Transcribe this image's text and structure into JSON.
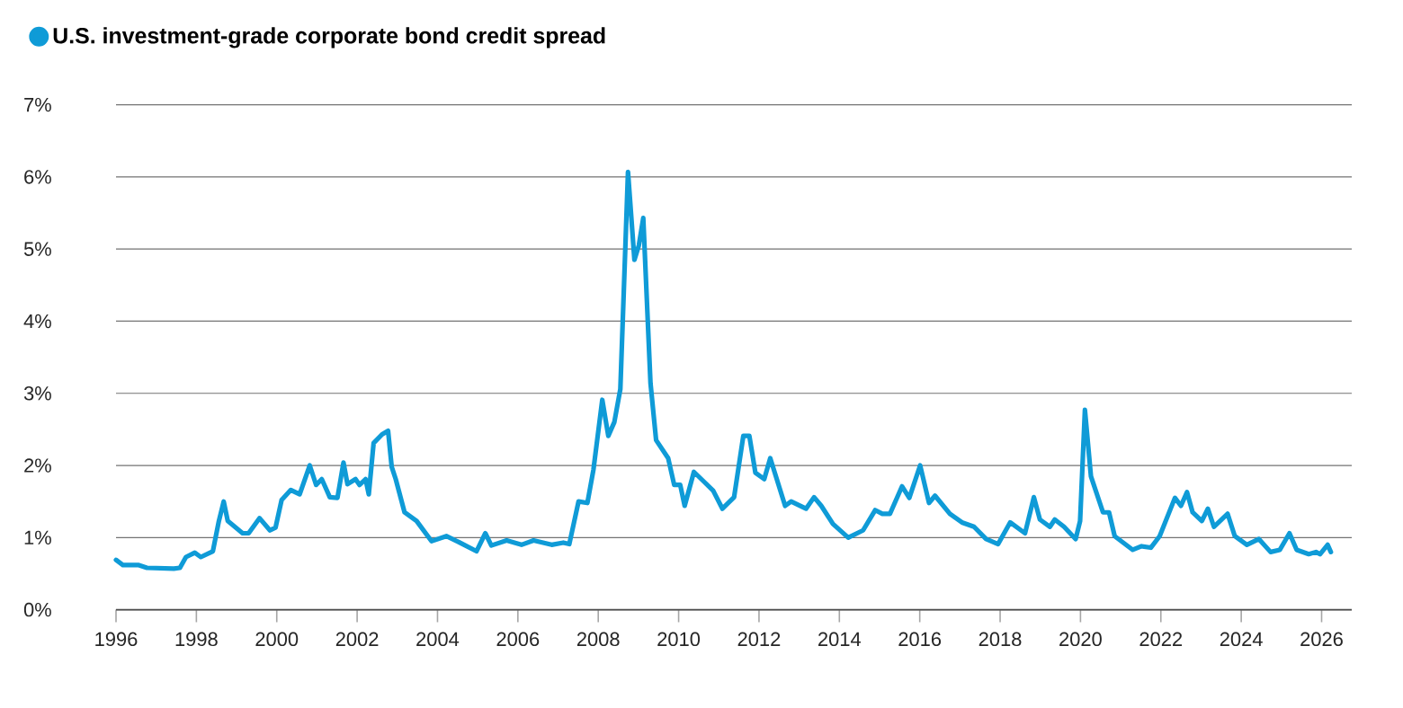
{
  "chart_data": {
    "type": "line",
    "x": [
      1996.0,
      1996.17,
      1996.55,
      1996.77,
      1997.44,
      1997.59,
      1997.74,
      1997.96,
      1998.11,
      1998.41,
      1998.56,
      1998.68,
      1998.78,
      1999.15,
      1999.3,
      1999.57,
      1999.83,
      1999.97,
      2000.12,
      2000.35,
      2000.57,
      2000.82,
      2000.98,
      2001.12,
      2001.32,
      2001.51,
      2001.66,
      2001.76,
      2001.96,
      2002.06,
      2002.21,
      2002.29,
      2002.41,
      2002.62,
      2002.77,
      2002.86,
      2002.96,
      2003.18,
      2003.48,
      2003.85,
      2004.22,
      2004.52,
      2004.97,
      2005.19,
      2005.34,
      2005.72,
      2006.09,
      2006.39,
      2006.84,
      2007.13,
      2007.28,
      2007.51,
      2007.73,
      2007.88,
      2008.1,
      2008.25,
      2008.4,
      2008.55,
      2008.74,
      2008.9,
      2009.01,
      2009.12,
      2009.3,
      2009.44,
      2009.74,
      2009.89,
      2010.04,
      2010.15,
      2010.38,
      2010.64,
      2010.86,
      2011.09,
      2011.38,
      2011.61,
      2011.76,
      2011.91,
      2012.13,
      2012.28,
      2012.65,
      2012.8,
      2013.17,
      2013.37,
      2013.55,
      2013.84,
      2014.22,
      2014.59,
      2014.89,
      2015.07,
      2015.26,
      2015.56,
      2015.74,
      2016.01,
      2016.23,
      2016.38,
      2016.75,
      2017.05,
      2017.35,
      2017.65,
      2017.95,
      2018.25,
      2018.62,
      2018.84,
      2018.99,
      2019.24,
      2019.36,
      2019.59,
      2019.88,
      2019.99,
      2020.11,
      2020.26,
      2020.56,
      2020.71,
      2020.85,
      2021.3,
      2021.52,
      2021.75,
      2021.97,
      2022.35,
      2022.5,
      2022.65,
      2022.79,
      2023.02,
      2023.17,
      2023.32,
      2023.66,
      2023.84,
      2024.14,
      2024.44,
      2024.73,
      2024.96,
      2025.2,
      2025.38,
      2025.68,
      2025.86,
      2025.96,
      2026.15,
      2026.23
    ],
    "series": [
      {
        "name": "U.S. investment-grade corporate bond credit spread",
        "color": "#0f9bd7",
        "values": [
          0.69,
          0.62,
          0.62,
          0.58,
          0.57,
          0.58,
          0.73,
          0.79,
          0.73,
          0.81,
          1.23,
          1.5,
          1.23,
          1.06,
          1.06,
          1.27,
          1.1,
          1.14,
          1.52,
          1.66,
          1.6,
          2.0,
          1.73,
          1.81,
          1.56,
          1.55,
          2.04,
          1.74,
          1.81,
          1.73,
          1.81,
          1.6,
          2.31,
          2.43,
          2.48,
          1.98,
          1.81,
          1.35,
          1.23,
          0.95,
          1.02,
          0.94,
          0.81,
          1.06,
          0.89,
          0.96,
          0.9,
          0.96,
          0.9,
          0.93,
          0.91,
          1.5,
          1.48,
          1.94,
          2.91,
          2.41,
          2.6,
          3.06,
          6.07,
          4.85,
          5.05,
          5.43,
          3.14,
          2.35,
          2.1,
          1.73,
          1.73,
          1.44,
          1.91,
          1.77,
          1.65,
          1.4,
          1.56,
          2.41,
          2.41,
          1.9,
          1.81,
          2.1,
          1.44,
          1.5,
          1.4,
          1.56,
          1.44,
          1.19,
          1.0,
          1.1,
          1.38,
          1.33,
          1.33,
          1.71,
          1.55,
          2.0,
          1.48,
          1.58,
          1.33,
          1.21,
          1.15,
          0.98,
          0.91,
          1.21,
          1.06,
          1.56,
          1.25,
          1.15,
          1.25,
          1.15,
          0.98,
          1.23,
          2.77,
          1.85,
          1.35,
          1.35,
          1.02,
          0.83,
          0.88,
          0.86,
          1.02,
          1.55,
          1.44,
          1.63,
          1.35,
          1.23,
          1.4,
          1.15,
          1.33,
          1.02,
          0.9,
          0.98,
          0.8,
          0.83,
          1.06,
          0.83,
          0.77,
          0.8,
          0.77,
          0.9,
          0.8
        ]
      }
    ],
    "xlim": [
      1996,
      2026.75
    ],
    "xticks": [
      1996,
      1998,
      2000,
      2002,
      2004,
      2006,
      2008,
      2010,
      2012,
      2014,
      2016,
      2018,
      2020,
      2022,
      2024,
      2026
    ],
    "ylim": [
      0,
      7
    ],
    "yticks": [
      {
        "value": 0,
        "label": "0%"
      },
      {
        "value": 1,
        "label": "1%"
      },
      {
        "value": 2,
        "label": "2%"
      },
      {
        "value": 3,
        "label": "3%"
      },
      {
        "value": 4,
        "label": "4%"
      },
      {
        "value": 5,
        "label": "5%"
      },
      {
        "value": 6,
        "label": "6%"
      },
      {
        "value": 7,
        "label": "7%"
      }
    ],
    "grid": "y",
    "legend": "top left"
  }
}
